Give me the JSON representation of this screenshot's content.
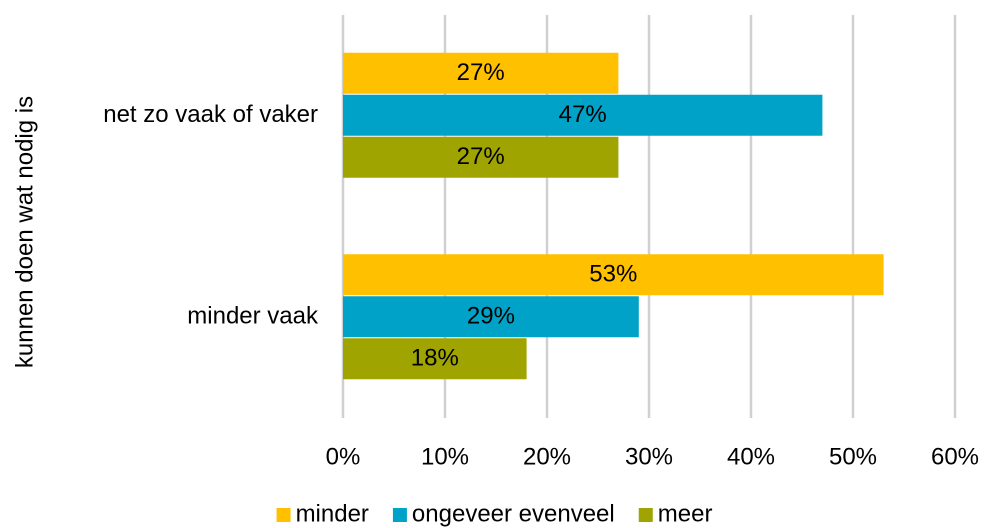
{
  "chart_data": {
    "type": "bar",
    "orientation": "horizontal",
    "y_axis_label": "kunnen doen wat nodig is",
    "categories": [
      "net zo vaak of vaker",
      "minder vaak"
    ],
    "series": [
      {
        "name": "minder",
        "color": "#FFC000",
        "values": [
          27,
          53
        ],
        "value_labels": [
          "27%",
          "53%"
        ]
      },
      {
        "name": "ongeveer evenveel",
        "color": "#00A3C7",
        "values": [
          47,
          29
        ],
        "value_labels": [
          "47%",
          "29%"
        ]
      },
      {
        "name": "meer",
        "color": "#A0A400",
        "values": [
          27,
          18
        ],
        "value_labels": [
          "27%",
          "18%"
        ]
      }
    ],
    "xlim": [
      0,
      60
    ],
    "xticks": [
      {
        "value": 0,
        "label": "0%"
      },
      {
        "value": 10,
        "label": "10%"
      },
      {
        "value": 20,
        "label": "20%"
      },
      {
        "value": 30,
        "label": "30%"
      },
      {
        "value": 40,
        "label": "40%"
      },
      {
        "value": 50,
        "label": "50%"
      },
      {
        "value": 60,
        "label": "60%"
      }
    ],
    "grid": true,
    "legend": "bottom"
  }
}
